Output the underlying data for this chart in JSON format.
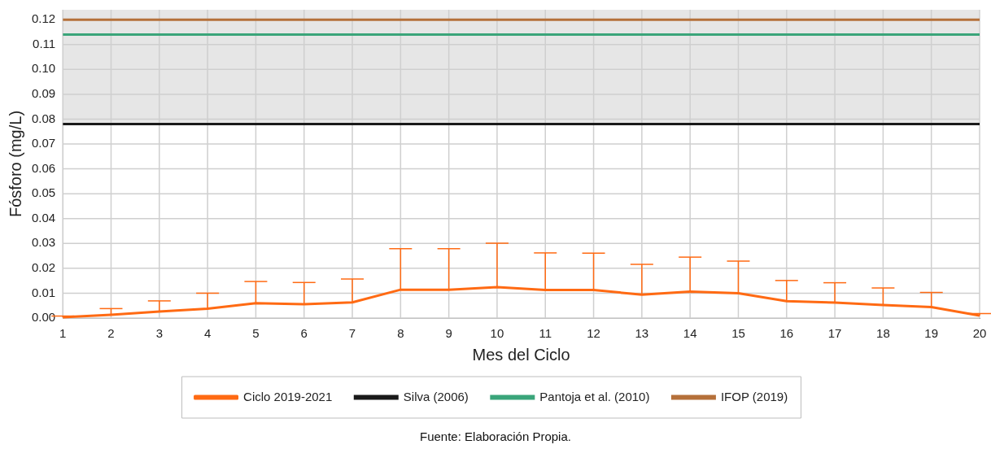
{
  "chart_data": {
    "type": "line",
    "xlabel": "Mes del Ciclo",
    "ylabel": "Fósforo (mg/L)",
    "x": [
      1,
      2,
      3,
      4,
      5,
      6,
      7,
      8,
      9,
      10,
      11,
      12,
      13,
      14,
      15,
      16,
      17,
      18,
      19,
      20
    ],
    "series": [
      {
        "name": "Ciclo 2019-2021",
        "color": "#ff6a13",
        "values": [
          0.0003,
          0.0013,
          0.0026,
          0.0038,
          0.006,
          0.0056,
          0.0063,
          0.0114,
          0.0114,
          0.0124,
          0.0113,
          0.0113,
          0.0094,
          0.0106,
          0.01,
          0.0068,
          0.0062,
          0.0052,
          0.0044,
          0.001
        ],
        "errors": [
          [
            0.0003,
            0.0008
          ],
          [
            0.0013,
            0.0038
          ],
          [
            0.0026,
            0.0069
          ],
          [
            0.0038,
            0.01
          ],
          [
            0.006,
            0.0147
          ],
          [
            0.0056,
            0.0143
          ],
          [
            0.0063,
            0.0157
          ],
          [
            0.0114,
            0.0279
          ],
          [
            0.0114,
            0.0279
          ],
          [
            0.0124,
            0.0301
          ],
          [
            0.0113,
            0.0262
          ],
          [
            0.0113,
            0.0261
          ],
          [
            0.0094,
            0.0216
          ],
          [
            0.0106,
            0.0245
          ],
          [
            0.01,
            0.0229
          ],
          [
            0.0068,
            0.0151
          ],
          [
            0.0062,
            0.0142
          ],
          [
            0.0052,
            0.0121
          ],
          [
            0.0044,
            0.0103
          ],
          [
            0.001,
            0.0018
          ]
        ]
      }
    ],
    "ref_lines": [
      {
        "axis": "y",
        "value": 0.078,
        "label": "Silva (2006)",
        "color": "#1a1a1a"
      },
      {
        "axis": "y",
        "value": 0.114,
        "label": "Pantoja et al. (2010)",
        "color": "#3aa57a"
      },
      {
        "axis": "y",
        "value": 0.12,
        "label": "IFOP (2019)",
        "color": "#b5703a"
      }
    ],
    "bands": [
      {
        "axis": "y",
        "from": 0.078,
        "to": 0.124,
        "color": "#e6e6e6"
      }
    ],
    "xlim": [
      1,
      20
    ],
    "xticks": [
      1,
      2,
      3,
      4,
      5,
      6,
      7,
      8,
      9,
      10,
      11,
      12,
      13,
      14,
      15,
      16,
      17,
      18,
      19,
      20
    ],
    "ylim": [
      0,
      0.124
    ],
    "yticks": [
      {
        "value": 0,
        "label": "0.00"
      },
      {
        "value": 0.01,
        "label": "0.01"
      },
      {
        "value": 0.02,
        "label": "0.02"
      },
      {
        "value": 0.03,
        "label": "0.03"
      },
      {
        "value": 0.04,
        "label": "0.04"
      },
      {
        "value": 0.05,
        "label": "0.05"
      },
      {
        "value": 0.06,
        "label": "0.06"
      },
      {
        "value": 0.07,
        "label": "0.07"
      },
      {
        "value": 0.08,
        "label": "0.08"
      },
      {
        "value": 0.09,
        "label": "0.09"
      },
      {
        "value": 0.1,
        "label": "0.10"
      },
      {
        "value": 0.11,
        "label": "0.11"
      },
      {
        "value": 0.12,
        "label": "0.12"
      }
    ],
    "grid": true,
    "legend": "bottom",
    "marker": "none",
    "line_style": "solid",
    "annotations": [
      "Fuente: Elaboración Propia."
    ]
  }
}
